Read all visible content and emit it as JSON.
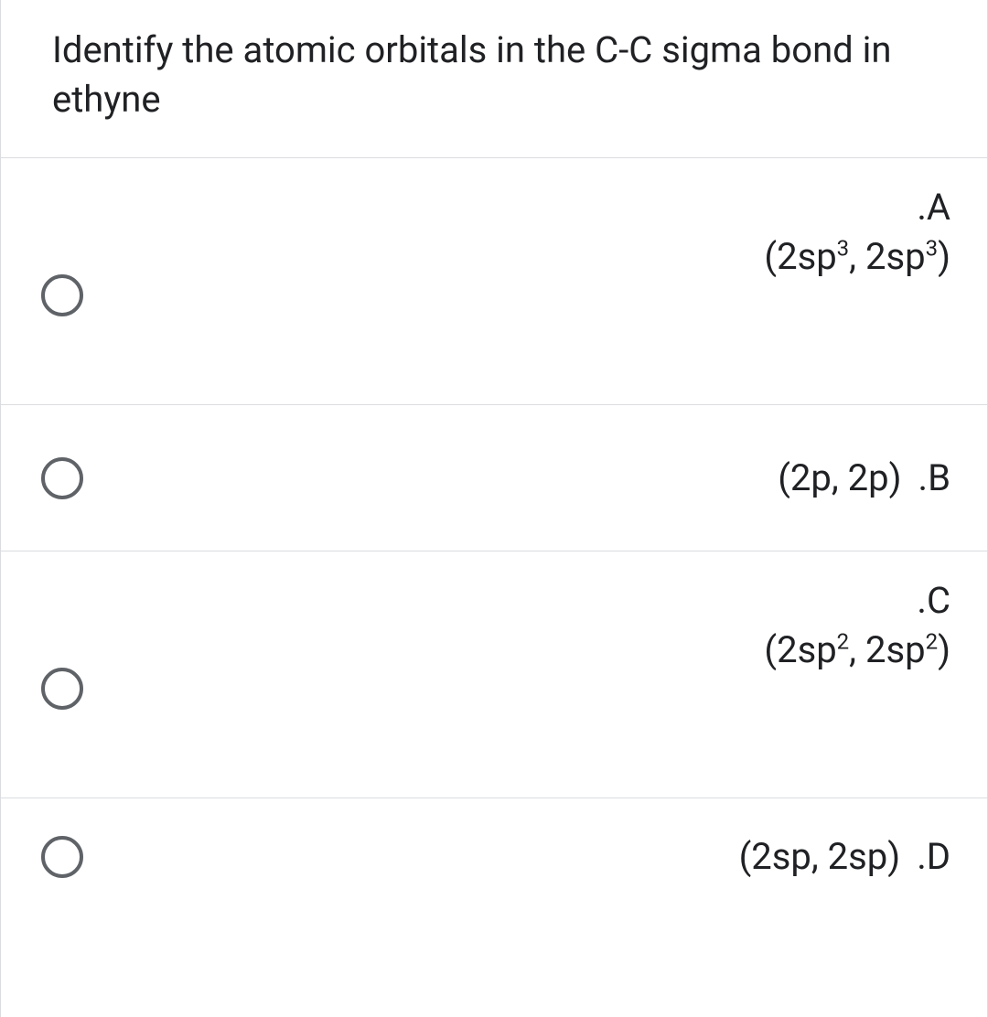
{
  "question": {
    "text": "Identify the atomic orbitals in the C-C sigma bond in ethyne"
  },
  "options": {
    "a": {
      "letter": ".A",
      "formula_html": "(2sp<sup>3</sup>, 2sp<sup>3</sup>)"
    },
    "b": {
      "letter": ".B",
      "formula_html": "(2p, 2p)"
    },
    "c": {
      "letter": ".C",
      "formula_html": "(2sp<sup>2</sup>, 2sp<sup>2</sup>)"
    },
    "d": {
      "letter": ".D",
      "formula_html": "(2sp, 2sp)"
    }
  },
  "colors": {
    "text": "#202124",
    "border": "#dadce0",
    "radio_border": "#5f6368",
    "background": "#ffffff"
  }
}
